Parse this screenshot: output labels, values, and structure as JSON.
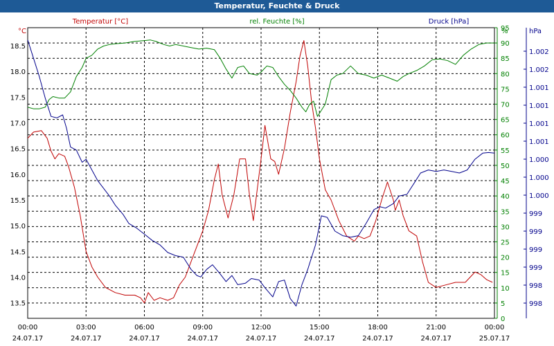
{
  "window": {
    "title": "Temperatur, Feuchte & Druck"
  },
  "colors": {
    "temperature": "#c00000",
    "humidity": "#008000",
    "pressure": "#00008b",
    "grid": "#000000"
  },
  "chart_data": {
    "type": "line",
    "grid": true,
    "axes": {
      "temperature": {
        "label": "Temperatur [°C]",
        "unit": "°C",
        "ylim": [
          13.2,
          18.85
        ],
        "ticks": [
          "18.5",
          "18.0",
          "17.5",
          "17.0",
          "16.5",
          "16.0",
          "15.5",
          "15.0",
          "14.5",
          "14.0",
          "13.5"
        ]
      },
      "humidity": {
        "label": "rel. Feuchte [%]",
        "unit": "%",
        "ylim": [
          0,
          95
        ],
        "ticks": [
          "95",
          "90",
          "85",
          "80",
          "75",
          "70",
          "65",
          "60",
          "55",
          "50",
          "45",
          "40",
          "35",
          "30",
          "25",
          "20",
          "15",
          "10",
          "5",
          "0"
        ]
      },
      "pressure": {
        "label": "Druck [hPa]",
        "unit": "hPa",
        "ticks": [
          "1.002",
          "1.002",
          "1.001",
          "1.001",
          "1.001",
          "1.001",
          "1.000",
          "1.000",
          "1.000",
          "999",
          "999",
          "999",
          "999",
          "998",
          "998"
        ]
      },
      "x": {
        "range": [
          0,
          24
        ],
        "ticks": [
          {
            "time": "00:00",
            "date": "24.07.17"
          },
          {
            "time": "03:00",
            "date": "24.07.17"
          },
          {
            "time": "06:00",
            "date": "24.07.17"
          },
          {
            "time": "09:00",
            "date": "24.07.17"
          },
          {
            "time": "12:00",
            "date": "24.07.17"
          },
          {
            "time": "15:00",
            "date": "24.07.17"
          },
          {
            "time": "18:00",
            "date": "24.07.17"
          },
          {
            "time": "21:00",
            "date": "24.07.17"
          },
          {
            "time": "00:00",
            "date": "25.07.17"
          }
        ]
      }
    },
    "series": [
      {
        "name": "Temperatur [°C]",
        "axis": "temperature",
        "color": "#c00000",
        "x": [
          0,
          0.3,
          0.7,
          1.0,
          1.2,
          1.4,
          1.6,
          1.9,
          2.1,
          2.4,
          2.7,
          3.0,
          3.3,
          3.6,
          4.0,
          4.5,
          5.0,
          5.5,
          5.8,
          6.0,
          6.2,
          6.5,
          6.8,
          7.2,
          7.5,
          7.8,
          8.1,
          8.4,
          8.7,
          9.0,
          9.3,
          9.6,
          9.8,
          10.0,
          10.3,
          10.6,
          10.9,
          11.2,
          11.4,
          11.6,
          11.8,
          12.0,
          12.2,
          12.5,
          12.7,
          12.9,
          13.2,
          13.5,
          13.8,
          14.0,
          14.2,
          14.4,
          14.6,
          14.8,
          15.0,
          15.3,
          15.6,
          16.0,
          16.4,
          16.8,
          17.0,
          17.3,
          17.6,
          17.9,
          18.2,
          18.5,
          18.8,
          18.9,
          19.1,
          19.3,
          19.6,
          20.0,
          20.3,
          20.6,
          21.0,
          21.5,
          22.0,
          22.5,
          23.0,
          23.3,
          23.6,
          23.9
        ],
        "values": [
          16.7,
          16.82,
          16.85,
          16.7,
          16.45,
          16.3,
          16.4,
          16.35,
          16.15,
          15.75,
          15.2,
          14.5,
          14.2,
          14.0,
          13.8,
          13.7,
          13.65,
          13.65,
          13.6,
          13.5,
          13.7,
          13.55,
          13.6,
          13.55,
          13.6,
          13.85,
          14.0,
          14.3,
          14.6,
          14.9,
          15.3,
          15.9,
          16.2,
          15.6,
          15.15,
          15.6,
          16.3,
          16.3,
          15.6,
          15.1,
          15.7,
          16.3,
          16.95,
          16.3,
          16.25,
          16.0,
          16.5,
          17.2,
          17.8,
          18.3,
          18.6,
          18.1,
          17.4,
          16.9,
          16.3,
          15.7,
          15.5,
          15.1,
          14.8,
          14.7,
          14.8,
          14.75,
          14.8,
          15.1,
          15.5,
          15.85,
          15.5,
          15.3,
          15.5,
          15.2,
          14.9,
          14.8,
          14.3,
          13.9,
          13.8,
          13.85,
          13.9,
          13.9,
          14.1,
          14.05,
          13.95,
          13.9
        ]
      },
      {
        "name": "rel. Feuchte [%]",
        "axis": "humidity",
        "color": "#008000",
        "x": [
          0,
          0.3,
          0.6,
          0.9,
          1.1,
          1.3,
          1.6,
          1.9,
          2.2,
          2.5,
          2.8,
          3.0,
          3.3,
          3.6,
          3.9,
          4.2,
          4.6,
          5.0,
          5.5,
          6.0,
          6.3,
          6.6,
          7.0,
          7.3,
          7.6,
          8.0,
          8.4,
          8.8,
          9.2,
          9.6,
          9.9,
          10.2,
          10.5,
          10.8,
          11.1,
          11.4,
          11.8,
          12.0,
          12.3,
          12.6,
          12.9,
          13.2,
          13.5,
          13.8,
          14.1,
          14.3,
          14.5,
          14.7,
          14.9,
          15.1,
          15.3,
          15.6,
          15.9,
          16.2,
          16.6,
          17.0,
          17.4,
          17.8,
          18.2,
          18.6,
          19.0,
          19.3,
          19.6,
          20.0,
          20.4,
          20.8,
          21.2,
          21.6,
          22.0,
          22.4,
          22.8,
          23.2,
          23.6,
          24.0
        ],
        "values": [
          69,
          68.5,
          68.5,
          69,
          71.5,
          72.5,
          72,
          72,
          74,
          79,
          82,
          85,
          86,
          88,
          89,
          89.5,
          89.8,
          90,
          90.5,
          90.8,
          91,
          90.5,
          89.5,
          89,
          89.5,
          89,
          88.5,
          88,
          88.3,
          87.8,
          85,
          81.5,
          78.5,
          82,
          82.5,
          80,
          79.5,
          80.5,
          82.5,
          82,
          79,
          76.5,
          74.5,
          72,
          69,
          67.5,
          70,
          71,
          66,
          68,
          70,
          78,
          79.5,
          80,
          82.5,
          80,
          79.5,
          78.5,
          79.5,
          78.5,
          77.5,
          79,
          80,
          81,
          82.5,
          84.5,
          84.8,
          84.2,
          83,
          86,
          88,
          89.5,
          90,
          90
        ]
      },
      {
        "name": "Druck [hPa]",
        "axis": "pressure",
        "color": "#00008b",
        "x": [
          0,
          0.3,
          0.6,
          0.9,
          1.2,
          1.5,
          1.8,
          2.0,
          2.2,
          2.5,
          2.8,
          3.0,
          3.3,
          3.6,
          3.9,
          4.2,
          4.5,
          4.9,
          5.2,
          5.6,
          6.0,
          6.4,
          6.8,
          7.2,
          7.6,
          8.0,
          8.4,
          8.7,
          8.9,
          9.2,
          9.5,
          9.9,
          10.2,
          10.5,
          10.8,
          11.2,
          11.5,
          11.9,
          12.2,
          12.6,
          12.9,
          13.2,
          13.5,
          13.8,
          14.1,
          14.4,
          14.8,
          15.1,
          15.4,
          15.8,
          16.2,
          16.6,
          17.0,
          17.4,
          17.8,
          18.1,
          18.4,
          18.8,
          19.1,
          19.5,
          19.9,
          20.2,
          20.6,
          21.0,
          21.4,
          21.8,
          22.2,
          22.6,
          23.0,
          23.4,
          23.7,
          24.0
        ],
        "values": [
          91,
          85,
          79,
          72,
          66,
          65.5,
          66.5,
          62,
          56,
          55,
          51,
          52,
          48.5,
          45,
          42.5,
          40,
          37,
          34,
          31,
          29.5,
          27.5,
          25.5,
          24,
          21.5,
          20.5,
          20,
          16,
          14,
          13.5,
          16,
          17.5,
          14.5,
          12,
          14,
          11,
          11.5,
          13,
          12.5,
          10,
          7,
          12,
          12.5,
          6.5,
          4,
          11,
          16,
          24,
          33.5,
          33,
          28.5,
          27,
          26.5,
          27,
          31,
          35.5,
          36.5,
          36,
          37.5,
          40,
          40.5,
          44.5,
          47.5,
          48.5,
          48,
          48.5,
          48,
          47.5,
          48.5,
          52,
          54,
          54.2,
          54
        ]
      }
    ]
  }
}
